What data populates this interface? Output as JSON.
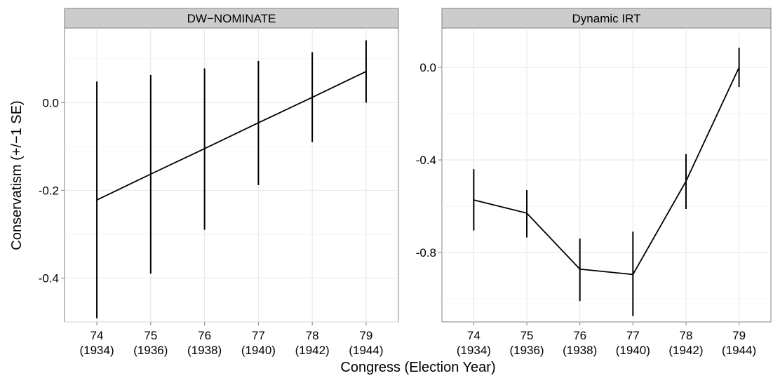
{
  "figure": {
    "xlabel": "Congress (Election Year)",
    "ylabel": "Conservatism (+/−1 SE)"
  },
  "chart_data": [
    {
      "type": "line",
      "title": "DW−NOMINATE",
      "x": [
        74,
        75,
        76,
        77,
        78,
        79
      ],
      "x_tick_labels": [
        [
          "74",
          "(1934)"
        ],
        [
          "75",
          "(1936)"
        ],
        [
          "76",
          "(1938)"
        ],
        [
          "77",
          "(1940)"
        ],
        [
          "78",
          "(1942)"
        ],
        [
          "79",
          "(1944)"
        ]
      ],
      "values": [
        -0.222,
        -0.163,
        -0.105,
        -0.046,
        0.012,
        0.071
      ],
      "se_lower": [
        -0.492,
        -0.39,
        -0.29,
        -0.188,
        -0.09,
        0.0
      ],
      "se_upper": [
        0.048,
        0.063,
        0.078,
        0.095,
        0.115,
        0.142
      ],
      "y_ticks": [
        -0.4,
        -0.2,
        0.0
      ],
      "y_tick_labels": [
        "-0.4",
        "-0.2",
        "0.0"
      ],
      "ylim": [
        -0.5,
        0.17
      ],
      "xlim": [
        73.4,
        79.6
      ],
      "grid": true
    },
    {
      "type": "line",
      "title": "Dynamic IRT",
      "x": [
        74,
        75,
        76,
        77,
        78,
        79
      ],
      "x_tick_labels": [
        [
          "74",
          "(1934)"
        ],
        [
          "75",
          "(1936)"
        ],
        [
          "76",
          "(1938)"
        ],
        [
          "77",
          "(1940)"
        ],
        [
          "78",
          "(1942)"
        ],
        [
          "79",
          "(1944)"
        ]
      ],
      "values": [
        -0.573,
        -0.63,
        -0.872,
        -0.895,
        -0.492,
        0.0
      ],
      "se_lower": [
        -0.705,
        -0.735,
        -1.01,
        -1.075,
        -0.612,
        -0.085
      ],
      "se_upper": [
        -0.44,
        -0.53,
        -0.74,
        -0.71,
        -0.375,
        0.085
      ],
      "y_ticks": [
        -0.8,
        -0.4,
        0.0
      ],
      "y_tick_labels": [
        "-0.8",
        "-0.4",
        "0.0"
      ],
      "ylim": [
        -1.1,
        0.17
      ],
      "xlim": [
        73.4,
        79.6
      ],
      "grid": true
    }
  ]
}
